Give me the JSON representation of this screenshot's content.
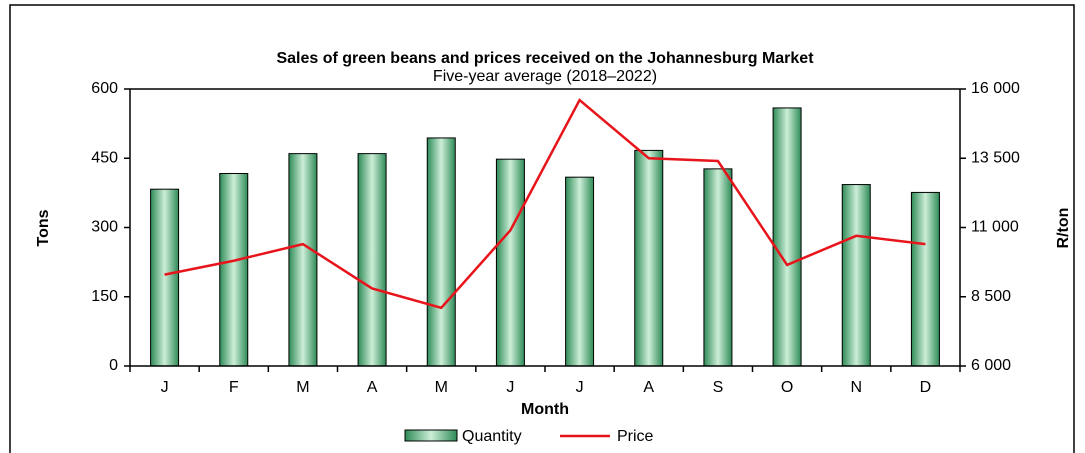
{
  "chart_data": {
    "type": "bar",
    "title": "Sales of green beans and prices received on the Johannesburg Market",
    "subtitle": "Five-year average (2018–2022)",
    "x_label": "Month",
    "y_label": "Tons",
    "y2_label": "R/ton",
    "categories": [
      "J",
      "F",
      "M",
      "A",
      "M",
      "J",
      "J",
      "A",
      "S",
      "O",
      "N",
      "D"
    ],
    "series": [
      {
        "name": "Quantity",
        "type": "bar",
        "color": "#2e8b57",
        "values": [
          383,
          417,
          460,
          460,
          494,
          448,
          409,
          467,
          427,
          559,
          393,
          376
        ]
      },
      {
        "name": "Price",
        "type": "line",
        "axis": "y2",
        "color": "#e8141b",
        "values": [
          9300,
          9800,
          10400,
          8800,
          8100,
          10900,
          15600,
          13500,
          13400,
          9650,
          10700,
          10400
        ]
      }
    ],
    "ylim": [
      0,
      600
    ],
    "yticks": [
      0,
      150,
      300,
      450,
      600
    ],
    "y2lim": [
      6000,
      16000
    ],
    "y2ticks": [
      {
        "value": 6000,
        "label": "6 000"
      },
      {
        "value": 8500,
        "label": "8 500"
      },
      {
        "value": 11000,
        "label": "11 000"
      },
      {
        "value": 13500,
        "label": "13 500"
      },
      {
        "value": 16000,
        "label": "16 000"
      }
    ],
    "legend": "bottom"
  }
}
